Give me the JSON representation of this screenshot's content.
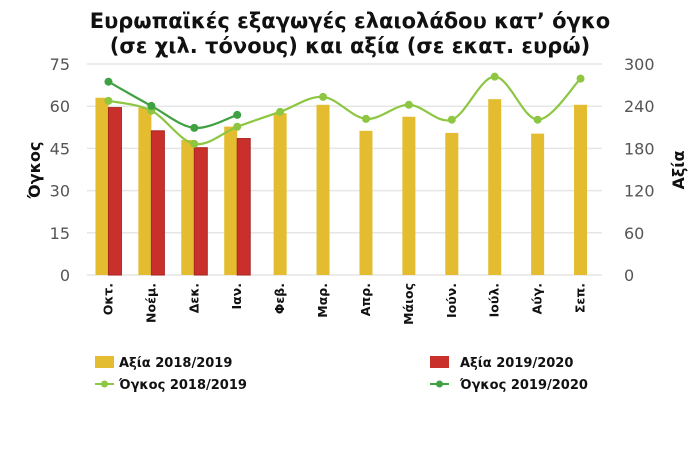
{
  "chart_data": {
    "type": "bar+line",
    "title": [
      "Ευρωπαϊκές εξαγωγές ελαιολάδου κατ’ όγκο",
      "(σε χιλ. τόνους) και αξία (σε εκατ. ευρώ)"
    ],
    "ylabel_left": "Όγκος",
    "ylabel_right": "Αξία",
    "ylim_left": [
      0,
      75
    ],
    "ylim_right": [
      0,
      300
    ],
    "yticks_left": [
      "0",
      "15",
      "30",
      "45",
      "60",
      "75"
    ],
    "yticks_right": [
      "0",
      "60",
      "120",
      "180",
      "240",
      "300"
    ],
    "grid": true,
    "legend_position": "bottom",
    "categories": [
      "Οκτ.",
      "Νοέμ.",
      "Δεκ.",
      "Ιαν.",
      "Φεβ.",
      "Μαρ.",
      "Απρ.",
      "Μάιος",
      "Ιούν.",
      "Ιούλ.",
      "Αύγ.",
      "Σεπ."
    ],
    "series": [
      {
        "name": "Αξία 2018/2019",
        "type": "bar",
        "axis": "right",
        "color": "#e3bd2f",
        "values": [
          252,
          238,
          192,
          211,
          230,
          242,
          205,
          225,
          202,
          250,
          201,
          242
        ]
      },
      {
        "name": "Αξία 2019/2020",
        "type": "bar",
        "axis": "right",
        "color": "#c9302c",
        "values": [
          238,
          205,
          181,
          194,
          null,
          null,
          null,
          null,
          null,
          null,
          null,
          null
        ]
      },
      {
        "name": "Όγκος 2018/2019",
        "type": "line",
        "axis": "left",
        "color": "#8dc641",
        "values": [
          61.9,
          58.4,
          46.6,
          52.7,
          58.0,
          63.3,
          55.5,
          60.5,
          55.2,
          70.5,
          55.2,
          69.8
        ]
      },
      {
        "name": "Όγκος 2019/2020",
        "type": "line",
        "axis": "left",
        "color": "#3fa142",
        "values": [
          68.7,
          60.1,
          52.3,
          56.9,
          null,
          null,
          null,
          null,
          null,
          null,
          null,
          null
        ]
      }
    ]
  }
}
